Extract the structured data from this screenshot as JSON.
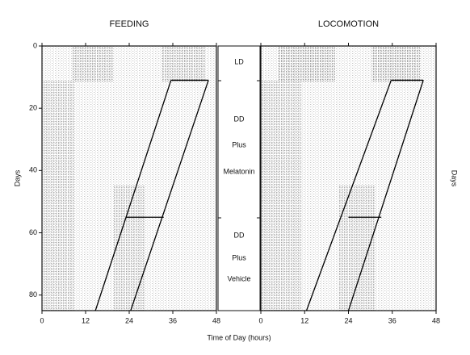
{
  "chart_data": [
    {
      "type": "actogram",
      "title": "FEEDING",
      "ylabel": "Days",
      "xlim": [
        0,
        48
      ],
      "xticks": [
        0,
        12,
        24,
        36,
        48
      ],
      "ylim": [
        0,
        85
      ],
      "yticks": [
        0,
        20,
        40,
        60,
        80
      ],
      "lines": [
        {
          "x": [
            14.7,
            35.5
          ],
          "y": [
            85,
            11
          ]
        },
        {
          "x": [
            24.4,
            45.8
          ],
          "y": [
            85,
            11
          ]
        },
        {
          "x": [
            35.5,
            45.8
          ],
          "y": [
            11,
            11
          ]
        },
        {
          "x": [
            23,
            33.5
          ],
          "y": [
            55,
            55
          ]
        }
      ]
    },
    {
      "type": "actogram",
      "title": "LOCOMOTION",
      "ylabel": "Days",
      "xlim": [
        0,
        48
      ],
      "xticks": [
        0,
        12,
        24,
        36,
        48
      ],
      "ylim": [
        0,
        85
      ],
      "lines": [
        {
          "x": [
            12.5,
            35.7
          ],
          "y": [
            85,
            11
          ]
        },
        {
          "x": [
            24,
            44.5
          ],
          "y": [
            85,
            11
          ]
        },
        {
          "x": [
            35.7,
            44.5
          ],
          "y": [
            11,
            11
          ]
        },
        {
          "x": [
            24,
            33
          ],
          "y": [
            55,
            55
          ]
        }
      ]
    }
  ],
  "figure": {
    "xlabel": "Time of Day (hours)",
    "center_labels": [
      "LD",
      "DD",
      "Plus",
      "Melatonin",
      "DD",
      "Plus",
      "Vehicle"
    ]
  }
}
